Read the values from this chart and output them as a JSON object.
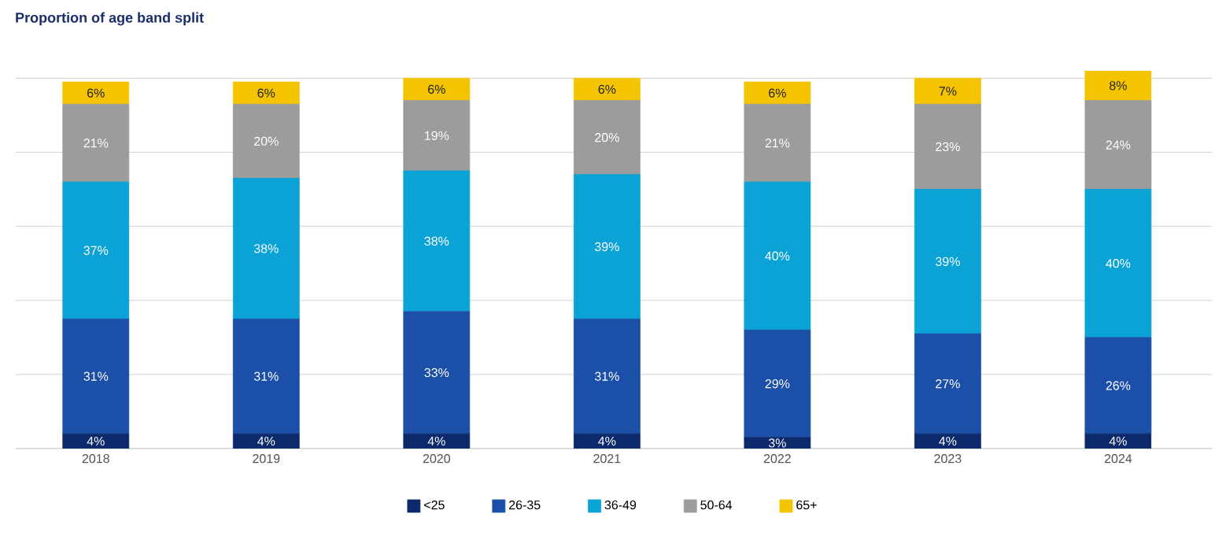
{
  "chart_data": {
    "type": "bar",
    "stacked": true,
    "title": "Proportion of age band split",
    "categories": [
      "2018",
      "2019",
      "2020",
      "2021",
      "2022",
      "2023",
      "2024"
    ],
    "series": [
      {
        "name": "<25",
        "color": "#0c2a6b",
        "values": [
          4,
          4,
          4,
          4,
          3,
          4,
          4
        ],
        "value_labels": [
          "4%",
          "4%",
          "4%",
          "4%",
          "3%",
          "4%",
          "4%"
        ]
      },
      {
        "name": "26-35",
        "color": "#1c4fa8",
        "values": [
          31,
          31,
          33,
          31,
          29,
          27,
          26
        ],
        "value_labels": [
          "31%",
          "31%",
          "33%",
          "31%",
          "29%",
          "27%",
          "26%"
        ]
      },
      {
        "name": "36-49",
        "color": "#0ba3d6",
        "values": [
          37,
          38,
          38,
          39,
          40,
          39,
          40
        ],
        "value_labels": [
          "37%",
          "38%",
          "38%",
          "39%",
          "40%",
          "39%",
          "40%"
        ]
      },
      {
        "name": "50-64",
        "color": "#9c9c9c",
        "values": [
          21,
          20,
          19,
          20,
          21,
          23,
          24
        ],
        "value_labels": [
          "21%",
          "20%",
          "19%",
          "20%",
          "21%",
          "23%",
          "24%"
        ]
      },
      {
        "name": "65+",
        "color": "#f5c400",
        "values": [
          6,
          6,
          6,
          6,
          6,
          7,
          8
        ],
        "value_labels": [
          "6%",
          "6%",
          "6%",
          "6%",
          "6%",
          "7%",
          "8%"
        ]
      }
    ],
    "ylim": [
      0,
      102
    ],
    "yticks": [
      {
        "value": 0,
        "label": null
      },
      {
        "value": 20,
        "label": null
      },
      {
        "value": 40,
        "label": null
      },
      {
        "value": 60,
        "label": null
      },
      {
        "value": 80,
        "label": null
      },
      {
        "value": 100,
        "label": null
      }
    ],
    "tick_labels": "x",
    "grid": "y",
    "legend": "bottom"
  }
}
